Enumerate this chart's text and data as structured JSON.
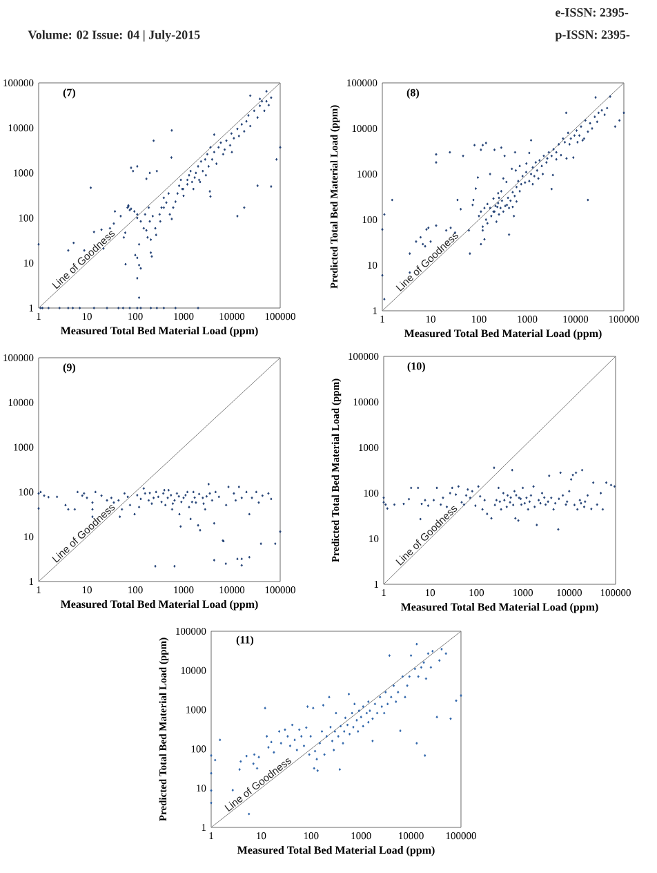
{
  "chart_data": [
    {
      "type": "scatter",
      "title": "(7)",
      "xlabel": "Measured Total Bed Material Load (ppm)",
      "annotations": [
        "e-ISSN: 2395-",
        "Volume: 02 Issue: 04 | July-2015",
        "p-ISSN: 2395-"
      ],
      "log": "xy",
      "xlim": [
        1,
        100000
      ],
      "ylim": [
        1,
        100000
      ],
      "xticks": [
        1,
        10,
        100,
        1000,
        10000,
        100000
      ],
      "yticks": [
        1,
        10,
        100,
        1000,
        10000,
        100000
      ],
      "series": [
        {
          "color": "#1f3f73",
          "marker": "diamond",
          "x": [
            1.1,
            1.2,
            1.6,
            2.7,
            4.1,
            5.1,
            7.1,
            14,
            26,
            45,
            56,
            77,
            110,
            130,
            210,
            280,
            390,
            680,
            2000,
            1,
            4.1,
            5.3,
            8.8,
            12,
            14,
            20,
            22,
            30,
            36,
            38,
            50,
            58,
            62,
            63,
            72,
            77,
            82,
            90,
            110,
            100,
            110,
            110,
            120,
            120,
            130,
            120,
            110,
            170,
            200,
            190,
            210,
            210,
            220,
            240,
            280,
            570,
            560,
            24000,
            52000,
            38000,
            100000,
            84000,
            34000,
            65000,
            13000,
            18000,
            3600,
            4300,
            3500,
            2200,
            69,
            72,
            82,
            96,
            110,
            130,
            150,
            170,
            180,
            160,
            200,
            230,
            260,
            270,
            320,
            330,
            350,
            390,
            390,
            440,
            490,
            520,
            570,
            610,
            680,
            750,
            810,
            880,
            940,
            980,
            1000,
            1200,
            1200,
            1300,
            1400,
            1500,
            1600,
            1700,
            1800,
            2000,
            2100,
            2300,
            2500,
            2800,
            2900,
            3100,
            3300,
            3600,
            3900,
            4300,
            4800,
            5300,
            5900,
            6600,
            7100,
            7700,
            9200,
            9800,
            10000,
            11000,
            13000,
            14000,
            16000,
            18000,
            20000,
            22000,
            24000,
            29000,
            34000,
            38000,
            42000,
            47000,
            52000,
            58000,
            65000
          ],
          "values": [
            1,
            1,
            1,
            1,
            1,
            1,
            1,
            1,
            1,
            1,
            1,
            1,
            1,
            1,
            1,
            1,
            1,
            1,
            1,
            26,
            19,
            28,
            19,
            470,
            49,
            55,
            21,
            59,
            75,
            140,
            110,
            37,
            47,
            9.4,
            190,
            150,
            1300,
            1100,
            1400,
            15,
            13,
            4.6,
            26,
            9,
            7.6,
            1.7,
            100,
            740,
            1000,
            170,
            33,
            17,
            14,
            5200,
            1100,
            8800,
            2200,
            52000,
            65000,
            44000,
            3700,
            2000,
            520,
            500,
            110,
            170,
            300,
            7100,
            390,
            630,
            170,
            180,
            160,
            140,
            120,
            84,
            59,
            53,
            37,
            120,
            84,
            110,
            59,
            42,
            120,
            84,
            170,
            280,
            170,
            220,
            350,
            120,
            95,
            170,
            230,
            350,
            520,
            700,
            440,
            440,
            310,
            560,
            700,
            890,
            1100,
            630,
            440,
            790,
            1000,
            1400,
            700,
            1800,
            1100,
            2000,
            890,
            2600,
            1400,
            3700,
            2000,
            2900,
            1600,
            3700,
            4700,
            2600,
            3300,
            5200,
            4100,
            7500,
            2900,
            5900,
            9500,
            6600,
            12000,
            8400,
            14000,
            19000,
            11000,
            24000,
            17000,
            31000,
            39000,
            24000,
            39000,
            32000,
            47000
          ]
        },
        {
          "type": "line",
          "name": "Line of Goodness",
          "color": "#808080",
          "x": [
            1,
            100000
          ],
          "values": [
            1,
            100000
          ]
        }
      ]
    },
    {
      "type": "scatter",
      "title": "(8)",
      "xlabel": "Measured Total Bed Material Load (ppm)",
      "ylabel": "Predicted Total Bed Material Load (ppm)",
      "log": "xy",
      "xlim": [
        1,
        100000
      ],
      "ylim": [
        1,
        100000
      ],
      "xticks": [
        1,
        10,
        100,
        1000,
        10000,
        100000
      ],
      "yticks": [
        1,
        10,
        100,
        1000,
        10000,
        100000
      ],
      "series": [
        {
          "color": "#1f3f73",
          "marker": "diamond",
          "x": [
            1,
            1,
            1.1,
            1.1,
            1.6,
            3.7,
            3.7,
            5,
            6.2,
            6.9,
            7.7,
            8.2,
            9,
            10,
            13,
            13,
            25,
            13,
            21,
            26,
            32,
            47,
            36,
            42,
            62,
            65,
            74,
            77,
            86,
            81,
            110,
            95,
            120,
            140,
            170,
            100,
            120,
            130,
            110,
            150,
            210,
            290,
            340,
            260,
            240,
            210,
            290,
            320,
            370,
            380,
            420,
            500,
            530,
            560,
            580,
            960,
            1100,
            1200,
            3200,
            3400,
            6400,
            5500,
            18000,
            26000,
            52000,
            66000,
            81000,
            100000,
            110,
            130,
            150,
            170,
            200,
            220,
            250,
            280,
            300,
            180,
            230,
            260,
            140,
            120,
            200,
            250,
            350,
            400,
            450,
            500,
            550,
            600,
            650,
            700,
            750,
            800,
            900,
            950,
            420,
            600,
            320,
            480,
            700,
            1100,
            1200,
            1300,
            1400,
            1500,
            1600,
            1800,
            2000,
            2200,
            2500,
            2800,
            1300,
            1700,
            2100,
            2600,
            3200,
            3500,
            4000,
            4500,
            5000,
            6000,
            7000,
            8000,
            9000,
            9500,
            4000,
            6500,
            7500,
            10500,
            12000,
            13000,
            15000,
            16000,
            18000,
            20000,
            22000,
            25000,
            28000,
            30000,
            35000,
            40000,
            45000,
            11000,
            14000
          ],
          "values": [
            61,
            6,
            1.8,
            130,
            270,
            18,
            6.9,
            33,
            41,
            29,
            26,
            61,
            66,
            33,
            1800,
            2700,
            3000,
            74,
            58,
            66,
            52,
            2500,
            270,
            170,
            58,
            18,
            210,
            270,
            480,
            4300,
            3400,
            840,
            4300,
            4800,
            1000,
            120,
            58,
            37,
            29,
            83,
            3400,
            3800,
            2500,
            300,
            190,
            150,
            420,
            150,
            670,
            210,
            47,
            190,
            120,
            3000,
            1200,
            1700,
            2900,
            5500,
            470,
            950,
            22000,
            6000,
            270,
            48000,
            50000,
            11000,
            15000,
            22000,
            150,
            180,
            220,
            180,
            150,
            200,
            230,
            180,
            260,
            120,
            90,
            130,
            100,
            70,
            290,
            380,
            200,
            300,
            260,
            400,
            330,
            520,
            700,
            420,
            600,
            900,
            650,
            1100,
            180,
            250,
            800,
            1300,
            1500,
            700,
            1000,
            1400,
            900,
            1800,
            1200,
            2000,
            1500,
            2500,
            1800,
            3000,
            600,
            800,
            1000,
            2200,
            2500,
            3500,
            3000,
            4500,
            2600,
            5000,
            8000,
            6000,
            2300,
            7000,
            2100,
            2200,
            4500,
            9000,
            7000,
            11000,
            6000,
            15000,
            8500,
            13000,
            10000,
            18000,
            14000,
            22000,
            25000,
            20000,
            28000,
            5000,
            5500
          ]
        },
        {
          "type": "line",
          "name": "Line of Goodness",
          "color": "#808080",
          "x": [
            1,
            100000
          ],
          "values": [
            1,
            100000
          ]
        }
      ]
    },
    {
      "type": "scatter",
      "title": "(9)",
      "xlabel": "Measured Total Bed Material Load (ppm)",
      "log": "xy",
      "xlim": [
        1,
        100000
      ],
      "ylim": [
        1,
        100000
      ],
      "xticks": [
        1,
        10,
        100,
        1000,
        10000,
        100000
      ],
      "yticks": [
        1,
        10,
        100,
        1000,
        10000,
        100000
      ],
      "series": [
        {
          "color": "#1f3f73",
          "marker": "diamond",
          "x": [
            1,
            1,
            1.1,
            1.3,
            1.6,
            2.4,
            3.6,
            4.1,
            5.6,
            6.4,
            8,
            8.7,
            10,
            13,
            13,
            15,
            13,
            20,
            26,
            32,
            36,
            45,
            53,
            48,
            60,
            70,
            78,
            97,
            120,
            150,
            160,
            190,
            240,
            270,
            300,
            380,
            420,
            470,
            490,
            580,
            650,
            730,
            820,
            870,
            1000,
            1200,
            1300,
            1400,
            1600,
            1800,
            2000,
            2200,
            2500,
            2800,
            3300,
            3500,
            3900,
            4300,
            4600,
            5400,
            6500,
            7600,
            8500,
            11000,
            12000,
            14000,
            16000,
            20000,
            23000,
            26000,
            32000,
            36000,
            43000,
            57000,
            65000,
            110,
            130,
            200,
            220,
            350,
            400,
            550,
            600,
            800,
            900,
            1100,
            1500,
            1700,
            2100,
            2600,
            3000,
            260,
            650,
            4300,
            7500,
            13000,
            16000,
            16000,
            23000,
            40000,
            79000,
            100000,
            6700
          ],
          "values": [
            93,
            43,
            100,
            83,
            77,
            78,
            51,
            41,
            41,
            100,
            83,
            93,
            74,
            58,
            41,
            100,
            28,
            83,
            65,
            74,
            58,
            65,
            41,
            28,
            93,
            78,
            51,
            32,
            46,
            120,
            93,
            65,
            74,
            100,
            78,
            93,
            51,
            74,
            110,
            41,
            65,
            93,
            32,
            17,
            74,
            100,
            46,
            25,
            100,
            58,
            18,
            14,
            74,
            41,
            150,
            93,
            65,
            20,
            100,
            78,
            8.2,
            51,
            130,
            93,
            65,
            130,
            74,
            100,
            32,
            74,
            100,
            58,
            83,
            93,
            70,
            85,
            70,
            95,
            55,
            60,
            110,
            85,
            55,
            80,
            60,
            85,
            60,
            75,
            90,
            55,
            80,
            2.2,
            2.2,
            3,
            2.5,
            3.2,
            3.2,
            2.3,
            3.5,
            7,
            7,
            13,
            8
          ]
        },
        {
          "type": "line",
          "name": "Line of Goodness",
          "color": "#808080",
          "x": [
            1,
            100000
          ],
          "values": [
            1,
            100000
          ]
        }
      ]
    },
    {
      "type": "scatter",
      "title": "(10)",
      "xlabel": "Measured Total Bed Material Load (ppm)",
      "ylabel": "Predicted Total Bed Material Load (ppm)",
      "log": "xy",
      "xlim": [
        1,
        100000
      ],
      "ylim": [
        1,
        100000
      ],
      "xticks": [
        1,
        10,
        100,
        1000,
        10000,
        100000
      ],
      "yticks": [
        1,
        10,
        100,
        1000,
        10000,
        100000
      ],
      "series": [
        {
          "color": "#1f3f73",
          "marker": "diamond",
          "x": [
            1,
            1,
            1.1,
            1.2,
            1.7,
            2.7,
            3.5,
            3.9,
            5.5,
            6.2,
            6.6,
            7.8,
            9.1,
            12,
            14,
            17,
            19,
            23,
            27,
            30,
            36,
            41,
            48,
            54,
            60,
            65,
            73,
            81,
            95,
            110,
            120,
            135,
            150,
            170,
            210,
            240,
            270,
            300,
            340,
            380,
            400,
            470,
            530,
            590,
            660,
            690,
            800,
            830,
            930,
            1000,
            1200,
            1300,
            1500,
            1700,
            2000,
            2200,
            2600,
            3100,
            3700,
            4100,
            4600,
            5800,
            6500,
            7300,
            8500,
            10000,
            11000,
            12000,
            14000,
            15000,
            17000,
            19000,
            21000,
            25000,
            33000,
            40000,
            48000,
            53000,
            63000,
            80000,
            95000,
            250,
            320,
            450,
            550,
            620,
            720,
            900,
            1100,
            1400,
            1800,
            2400,
            2900,
            3500,
            5000,
            6000,
            9000,
            13000,
            18000,
            22000,
            30000
          ],
          "values": [
            79,
            63,
            56,
            46,
            56,
            58,
            74,
            130,
            130,
            27,
            58,
            70,
            53,
            70,
            130,
            56,
            79,
            50,
            100,
            130,
            93,
            140,
            63,
            56,
            89,
            120,
            79,
            110,
            53,
            140,
            85,
            44,
            70,
            35,
            28,
            360,
            70,
            130,
            44,
            100,
            70,
            89,
            63,
            320,
            110,
            28,
            25,
            79,
            56,
            130,
            79,
            44,
            89,
            140,
            20,
            70,
            100,
            56,
            240,
            79,
            44,
            16,
            280,
            89,
            56,
            110,
            200,
            250,
            280,
            44,
            70,
            320,
            50,
            89,
            170,
            56,
            100,
            44,
            170,
            150,
            140,
            55,
            65,
            50,
            80,
            55,
            90,
            75,
            60,
            65,
            50,
            60,
            80,
            65,
            60,
            75,
            65,
            55,
            60,
            65,
            45
          ]
        },
        {
          "type": "line",
          "name": "Line of Goodness",
          "color": "#808080",
          "x": [
            1,
            100000
          ],
          "values": [
            1,
            100000
          ]
        }
      ]
    },
    {
      "type": "scatter",
      "title": "(11)",
      "xlabel": "Measured Total Bed Material Load (ppm)",
      "ylabel": "Predicted Total Bed Material Load (ppm)",
      "log": "xy",
      "xlim": [
        1,
        100000
      ],
      "ylim": [
        1,
        100000
      ],
      "xticks": [
        1,
        10,
        100,
        1000,
        10000,
        100000
      ],
      "yticks": [
        1,
        10,
        100,
        1000,
        10000,
        100000
      ],
      "series": [
        {
          "color": "#2b62a8",
          "marker": "diamond",
          "x": [
            1,
            1,
            1,
            1,
            1.2,
            1.5,
            2.7,
            3.7,
            3.9,
            5.1,
            5.7,
            7,
            7.3,
            8.3,
            9,
            12,
            13,
            14,
            16,
            18,
            23,
            25,
            30,
            34,
            38,
            42,
            47,
            52,
            58,
            64,
            72,
            80,
            85,
            92,
            98,
            110,
            115,
            120,
            130,
            135,
            150,
            165,
            175,
            185,
            205,
            230,
            245,
            265,
            285,
            300,
            315,
            350,
            375,
            390,
            435,
            460,
            485,
            535,
            570,
            590,
            660,
            700,
            740,
            820,
            870,
            910,
            1000,
            1100,
            1100,
            1300,
            1400,
            1400,
            1500,
            1700,
            1700,
            1900,
            2100,
            2400,
            2600,
            2900,
            3100,
            3400,
            3700,
            4000,
            4500,
            5000,
            5500,
            6100,
            6800,
            7600,
            8400,
            9300,
            10000,
            12000,
            13000,
            14000,
            16000,
            18000,
            19000,
            20000,
            22000,
            25000,
            27000,
            33000,
            37000,
            41000,
            50000,
            62000,
            80000,
            100000,
            13000
          ],
          "values": [
            68,
            24,
            8.7,
            4.2,
            52,
            170,
            8.9,
            30,
            48,
            66,
            2.2,
            42,
            72,
            32,
            62,
            1100,
            210,
            110,
            150,
            82,
            280,
            140,
            310,
            210,
            120,
            410,
            170,
            94,
            310,
            210,
            120,
            350,
            1200,
            72,
            210,
            1100,
            32,
            88,
            55,
            28,
            140,
            280,
            1300,
            72,
            210,
            2100,
            360,
            160,
            94,
            280,
            820,
            210,
            30,
            380,
            140,
            280,
            620,
            410,
            2500,
            240,
            820,
            360,
            1400,
            540,
            280,
            940,
            650,
            380,
            1200,
            820,
            480,
            1600,
            940,
            590,
            160,
            1400,
            820,
            2100,
            1200,
            820,
            2800,
            1400,
            24000,
            2100,
            4100,
            1600,
            2800,
            290,
            7000,
            2100,
            4100,
            7000,
            24000,
            11000,
            140,
            7000,
            12000,
            16000,
            68,
            6200,
            27000,
            12000,
            31000,
            650,
            18000,
            35000,
            27000,
            590,
            1700,
            2300,
            47000
          ]
        },
        {
          "type": "line",
          "name": "Line of Goodness",
          "color": "#808080",
          "x": [
            1,
            100000
          ],
          "values": [
            1,
            100000
          ]
        }
      ]
    }
  ]
}
